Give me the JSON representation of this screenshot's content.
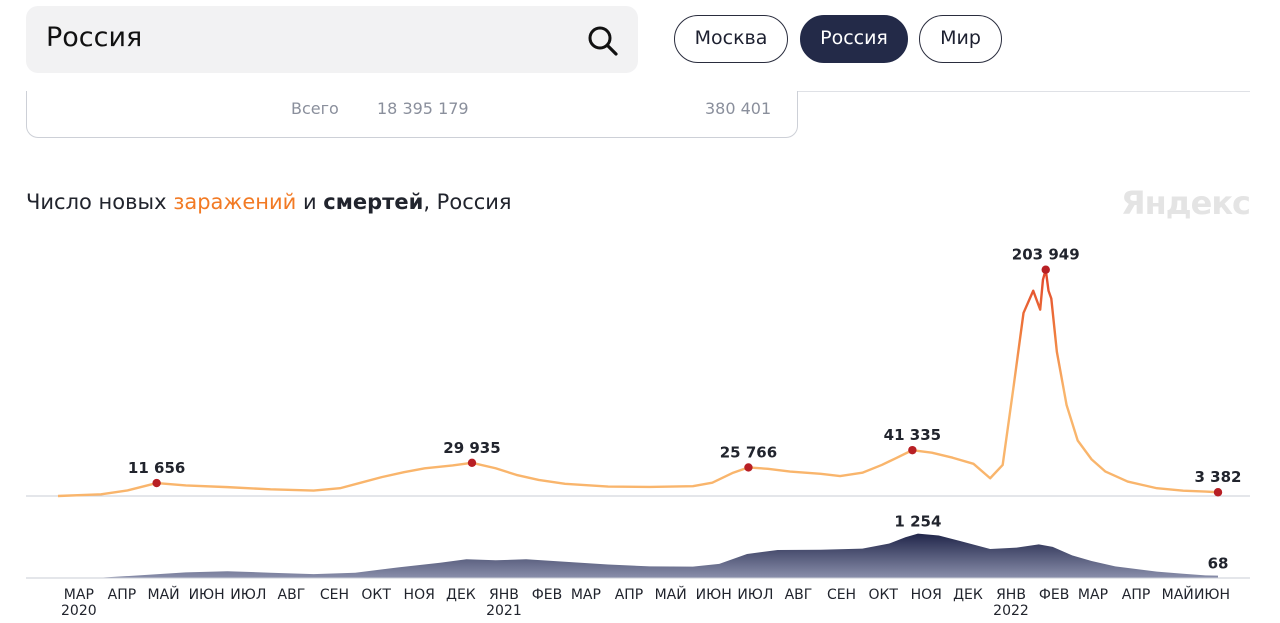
{
  "search": {
    "value": "Россия"
  },
  "region_tabs": [
    {
      "label": "Москва",
      "active": false
    },
    {
      "label": "Россия",
      "active": true
    },
    {
      "label": "Мир",
      "active": false
    }
  ],
  "summary_row": {
    "label": "Всего",
    "cases": "18 395 179",
    "deaths": "380 401"
  },
  "chart_title": {
    "prefix": "Число новых ",
    "infections": "заражений",
    "middle": " и ",
    "deaths": "смертей",
    "suffix": ", Россия"
  },
  "brand": "Яндекс",
  "colors": {
    "infections_line": "#f9b56c",
    "infections_peak": "#e0402a",
    "deaths_area": "#4d5274",
    "marker": "#b81f24",
    "accent": "#f27a24"
  },
  "chart_data": [
    {
      "type": "line",
      "series": [
        {
          "name": "заражений",
          "x": [
            "2020-03-01",
            "2020-04-01",
            "2020-04-20",
            "2020-05-11",
            "2020-06-01",
            "2020-07-01",
            "2020-08-01",
            "2020-09-01",
            "2020-09-20",
            "2020-10-05",
            "2020-10-20",
            "2020-11-05",
            "2020-11-20",
            "2020-12-10",
            "2020-12-24",
            "2021-01-10",
            "2021-01-25",
            "2021-02-10",
            "2021-03-01",
            "2021-04-01",
            "2021-05-01",
            "2021-06-01",
            "2021-06-15",
            "2021-06-30",
            "2021-07-11",
            "2021-07-25",
            "2021-08-10",
            "2021-09-01",
            "2021-09-15",
            "2021-10-01",
            "2021-10-15",
            "2021-10-25",
            "2021-11-06",
            "2021-11-20",
            "2021-12-05",
            "2021-12-20",
            "2022-01-01",
            "2022-01-10",
            "2022-01-18",
            "2022-01-25",
            "2022-02-01",
            "2022-02-06",
            "2022-02-08",
            "2022-02-10",
            "2022-02-12",
            "2022-02-14",
            "2022-02-18",
            "2022-02-25",
            "2022-03-05",
            "2022-03-15",
            "2022-03-25",
            "2022-04-10",
            "2022-05-01",
            "2022-05-20",
            "2022-06-05",
            "2022-06-14"
          ],
          "y": [
            0,
            1500,
            5000,
            11656,
            9500,
            8000,
            6000,
            4900,
            7000,
            12000,
            17000,
            21500,
            25000,
            27500,
            29935,
            25000,
            19000,
            14500,
            11000,
            8500,
            8200,
            8800,
            12000,
            21000,
            25766,
            24500,
            22000,
            20000,
            18000,
            21000,
            28000,
            34000,
            41335,
            39000,
            34500,
            29000,
            16000,
            28000,
            100000,
            165000,
            185000,
            168000,
            195000,
            203949,
            185000,
            178000,
            130000,
            82000,
            50000,
            33000,
            22000,
            13000,
            7000,
            4800,
            4000,
            3382
          ],
          "labels": [
            {
              "x": "2020-05-11",
              "text": "11 656"
            },
            {
              "x": "2020-12-24",
              "text": "29 935"
            },
            {
              "x": "2021-07-11",
              "text": "25 766"
            },
            {
              "x": "2021-11-06",
              "text": "41 335"
            },
            {
              "x": "2022-02-10",
              "text": "203 949"
            },
            {
              "x": "2022-06-14",
              "text": "3 382"
            }
          ]
        }
      ],
      "ylim": [
        0,
        210000
      ]
    },
    {
      "type": "area",
      "series": [
        {
          "name": "смертей",
          "x": [
            "2020-03-01",
            "2020-04-01",
            "2020-05-01",
            "2020-06-01",
            "2020-07-01",
            "2020-08-01",
            "2020-09-01",
            "2020-10-01",
            "2020-11-01",
            "2020-12-01",
            "2020-12-20",
            "2021-01-10",
            "2021-02-01",
            "2021-03-01",
            "2021-04-01",
            "2021-05-01",
            "2021-06-01",
            "2021-06-20",
            "2021-07-10",
            "2021-08-01",
            "2021-09-01",
            "2021-10-01",
            "2021-10-20",
            "2021-11-01",
            "2021-11-10",
            "2021-11-25",
            "2021-12-10",
            "2022-01-01",
            "2022-01-20",
            "2022-02-05",
            "2022-02-15",
            "2022-03-01",
            "2022-03-15",
            "2022-04-01",
            "2022-05-01",
            "2022-05-20",
            "2022-06-05",
            "2022-06-14"
          ],
          "y": [
            0,
            10,
            80,
            160,
            190,
            150,
            110,
            150,
            300,
            430,
            530,
            500,
            530,
            460,
            380,
            330,
            320,
            400,
            680,
            790,
            800,
            830,
            970,
            1150,
            1254,
            1200,
            1050,
            820,
            860,
            950,
            880,
            640,
            480,
            330,
            180,
            120,
            75,
            68
          ],
          "labels": [
            {
              "x": "2021-11-10",
              "text": "1 254"
            },
            {
              "x": "2022-06-14",
              "text": "68"
            }
          ]
        }
      ],
      "ylim": [
        0,
        1300
      ]
    }
  ],
  "x_axis": {
    "months": [
      "МАР",
      "АПР",
      "МАЙ",
      "ИЮН",
      "ИЮЛ",
      "АВГ",
      "СЕН",
      "ОКТ",
      "НОЯ",
      "ДЕК",
      "ЯНВ",
      "ФЕВ",
      "МАР",
      "АПР",
      "МАЙ",
      "ИЮН",
      "ИЮЛ",
      "АВГ",
      "СЕН",
      "ОКТ",
      "НОЯ",
      "ДЕК",
      "ЯНВ",
      "ФЕВ",
      "МАР",
      "АПР",
      "МАЙ",
      "ИЮН"
    ],
    "years": [
      "2020",
      "2021",
      "2022"
    ]
  }
}
